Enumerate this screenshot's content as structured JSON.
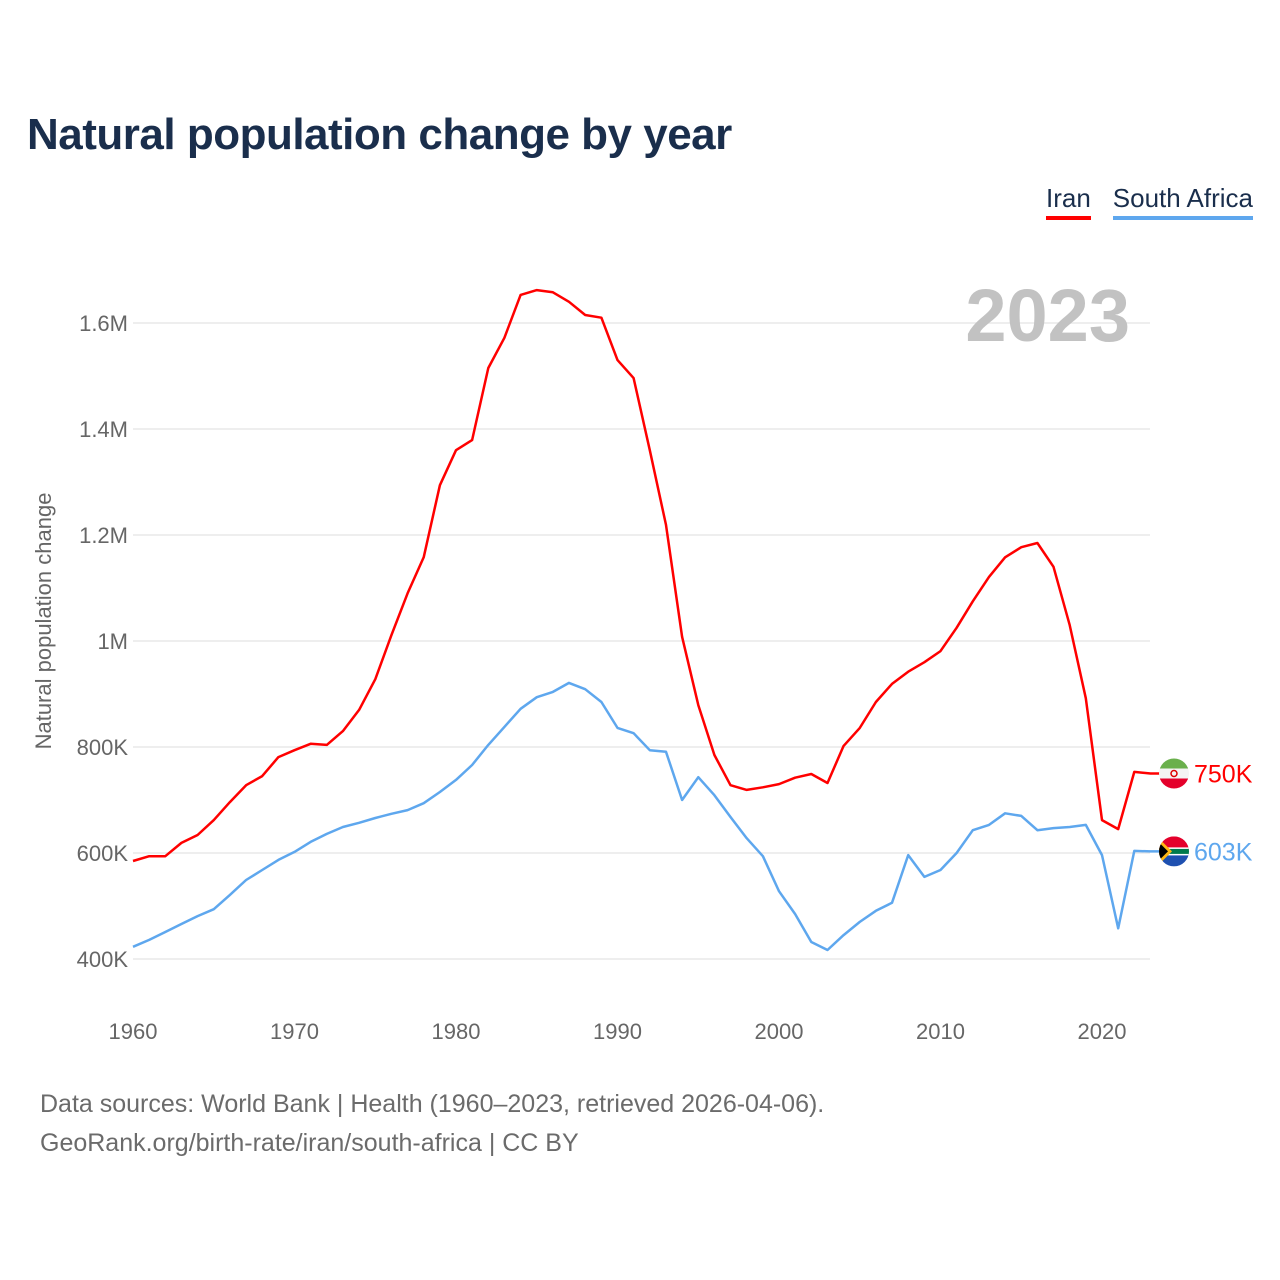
{
  "chart_data": {
    "type": "line",
    "title": "Natural population change by year",
    "xlabel": "",
    "ylabel": "Natural population change",
    "xlim": [
      1960,
      2023
    ],
    "ylim": [
      400000,
      1600000
    ],
    "x_ticks": [
      1960,
      1970,
      1980,
      1990,
      2000,
      2010,
      2020
    ],
    "y_ticks": [
      400000,
      600000,
      800000,
      1000000,
      1200000,
      1400000,
      1600000
    ],
    "y_tick_labels": [
      "400K",
      "600K",
      "800K",
      "1M",
      "1.2M",
      "1.4M",
      "1.6M"
    ],
    "grid": true,
    "legend_position": "top-right",
    "year_label": "2023",
    "x_start": 1960,
    "series": [
      {
        "name": "Iran",
        "color": "#ff0000",
        "end_label": "750K",
        "flag": "iran-flag",
        "values": [
          585000,
          594000,
          594000,
          619000,
          634000,
          662000,
          696000,
          728000,
          745000,
          781000,
          794000,
          806000,
          804000,
          830000,
          870000,
          928000,
          1011000,
          1090000,
          1158000,
          1294000,
          1360000,
          1379000,
          1515000,
          1572000,
          1653000,
          1662000,
          1658000,
          1640000,
          1615000,
          1610000,
          1530000,
          1496000,
          1360000,
          1219000,
          1008000,
          879000,
          785000,
          728000,
          719000,
          724000,
          730000,
          742000,
          749000,
          732000,
          802000,
          836000,
          885000,
          919000,
          942000,
          960000,
          981000,
          1025000,
          1075000,
          1121000,
          1158000,
          1177000,
          1185000,
          1140000,
          1030000,
          892000,
          662000,
          645000,
          753000,
          750000
        ]
      },
      {
        "name": "South Africa",
        "color": "#5ea7ee",
        "end_label": "603K",
        "flag": "south-africa-flag",
        "values": [
          423000,
          436000,
          451000,
          466000,
          481000,
          494000,
          521000,
          549000,
          568000,
          587000,
          602000,
          621000,
          636000,
          649000,
          657000,
          666000,
          674000,
          681000,
          694000,
          715000,
          738000,
          766000,
          804000,
          838000,
          872000,
          894000,
          904000,
          921000,
          909000,
          885000,
          836000,
          826000,
          794000,
          791000,
          700000,
          743000,
          709000,
          668000,
          628000,
          594000,
          528000,
          485000,
          432000,
          417000,
          445000,
          470000,
          491000,
          506000,
          596000,
          555000,
          568000,
          600000,
          643000,
          653000,
          675000,
          670000,
          643000,
          647000,
          649000,
          653000,
          596000,
          458000,
          604000,
          603000
        ]
      }
    ]
  },
  "footer": {
    "line1": "Data sources: World Bank | Health (1960–2023, retrieved 2026-04-06).",
    "line2": "GeoRank.org/birth-rate/iran/south-africa | CC BY"
  }
}
